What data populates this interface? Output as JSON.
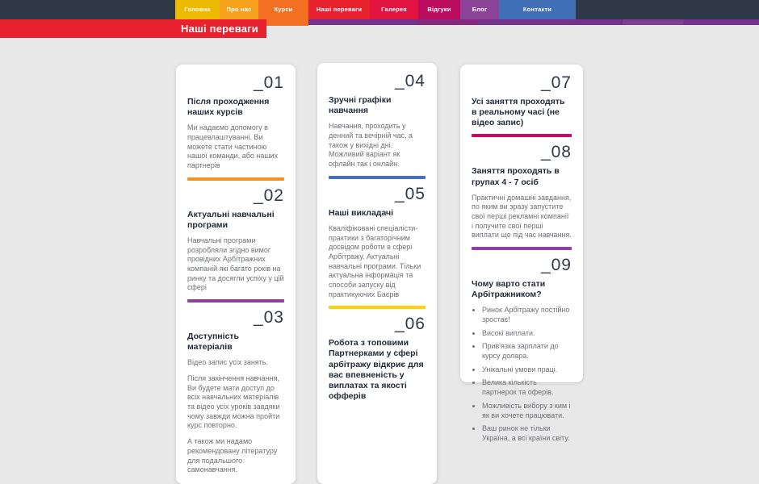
{
  "page": {
    "heading": "Наші переваги",
    "heading_bg": "#e8212e",
    "header_bg": "#2e3847",
    "stripe_color": "#73308d",
    "body_bg": "#e8e8e8"
  },
  "nav": {
    "items": [
      {
        "label": "Головна",
        "bg": "#edba00"
      },
      {
        "label": "Про нас",
        "bg": "#f6a21d"
      },
      {
        "label": "Курси",
        "bg": "#f36f21",
        "active": true
      },
      {
        "label": "Наші переваги",
        "bg": "#e8212e"
      },
      {
        "label": "Галерея",
        "bg": "#e41440"
      },
      {
        "label": "Відгуки",
        "bg": "#bb0d60"
      },
      {
        "label": "Блог",
        "bg": "#8b4397"
      },
      {
        "label": "Контакти",
        "bg": "#4170b7"
      }
    ]
  },
  "columns": [
    {
      "sections": [
        {
          "number": "_01",
          "heading": "Після проходження наших курсів",
          "paragraphs": [
            "Ми надаємо допомогу в працевлаштуванні. Ви можете стати частиною нашої команди, або наших партнерів"
          ],
          "divider": "#f6921e"
        },
        {
          "number": "_02",
          "heading": "Актуальні навчальні програми",
          "paragraphs": [
            "Навчальні програми розробляли згідно вимог провідних Арбітражних компаній які багато років на ринку та досягли успіху у цій сфері"
          ],
          "divider": "#8e3fa0"
        },
        {
          "number": "_03",
          "heading": "Доступність матеріалів",
          "paragraphs": [
            "Відео запис усіх занять.",
            "Після закінчення навчання, Ви будете мати доступ до всіх навчальних матеріалів та відео усіх уроків завдяки чому завжди можна пройти курс повторно.",
            "А також ми надамо рекомендовану літературу для подальшого самонавчання."
          ]
        }
      ]
    },
    {
      "sections": [
        {
          "number": "_04",
          "heading": "Зручні графіки навчання",
          "paragraphs": [
            "Навчання, проходить у денний та вечірній час, а також у вихідні дні. Можливий варіант як офлайн так і онлайн."
          ],
          "divider": "#4470b8"
        },
        {
          "number": "_05",
          "heading": "Наші викладачі",
          "paragraphs": [
            "Кваліфіковані спеціалісти-практики з багаторічним досвідом роботи в сфері Арбітражу. Актуальні навчальні програми. Тільки актуальна інформація та способи запуску від практикуючих Баєрів"
          ],
          "divider": "#fdd404"
        },
        {
          "number": "_06",
          "heading": "Робота з топовими Партнерками у сфері арбітражу відкриє для вас впевненість у виплатах та якості офферів"
        }
      ]
    },
    {
      "sections": [
        {
          "number": "_07",
          "heading": "Усі заняття проходять в реальному часі (не відео запис)",
          "divider": "#bf0d62"
        },
        {
          "number": "_08",
          "heading": "Заняття проходять в групах 4 - 7 осіб",
          "paragraphs": [
            "Практичні домашні завдання, по яким ви зразу запустите свої перші рекламні компанії і получите свої перші виплати ще під час навчання."
          ],
          "divider": "#8e3fa0"
        },
        {
          "number": "_09",
          "heading": "Чому варто стати Арбітражником?",
          "bullets": [
            "Ринок Арбітражу постійно зростає!",
            "Високі виплати.",
            "Прив'язка зарплати до курсу долара.",
            "Унікальні умови праці.",
            "Велика кількість партнерок та оферів.",
            "Можливість вибору з ким і як ви хочете працювати.",
            "Ваш ринок не тільки Україна, а всі країни світу."
          ]
        }
      ]
    }
  ]
}
